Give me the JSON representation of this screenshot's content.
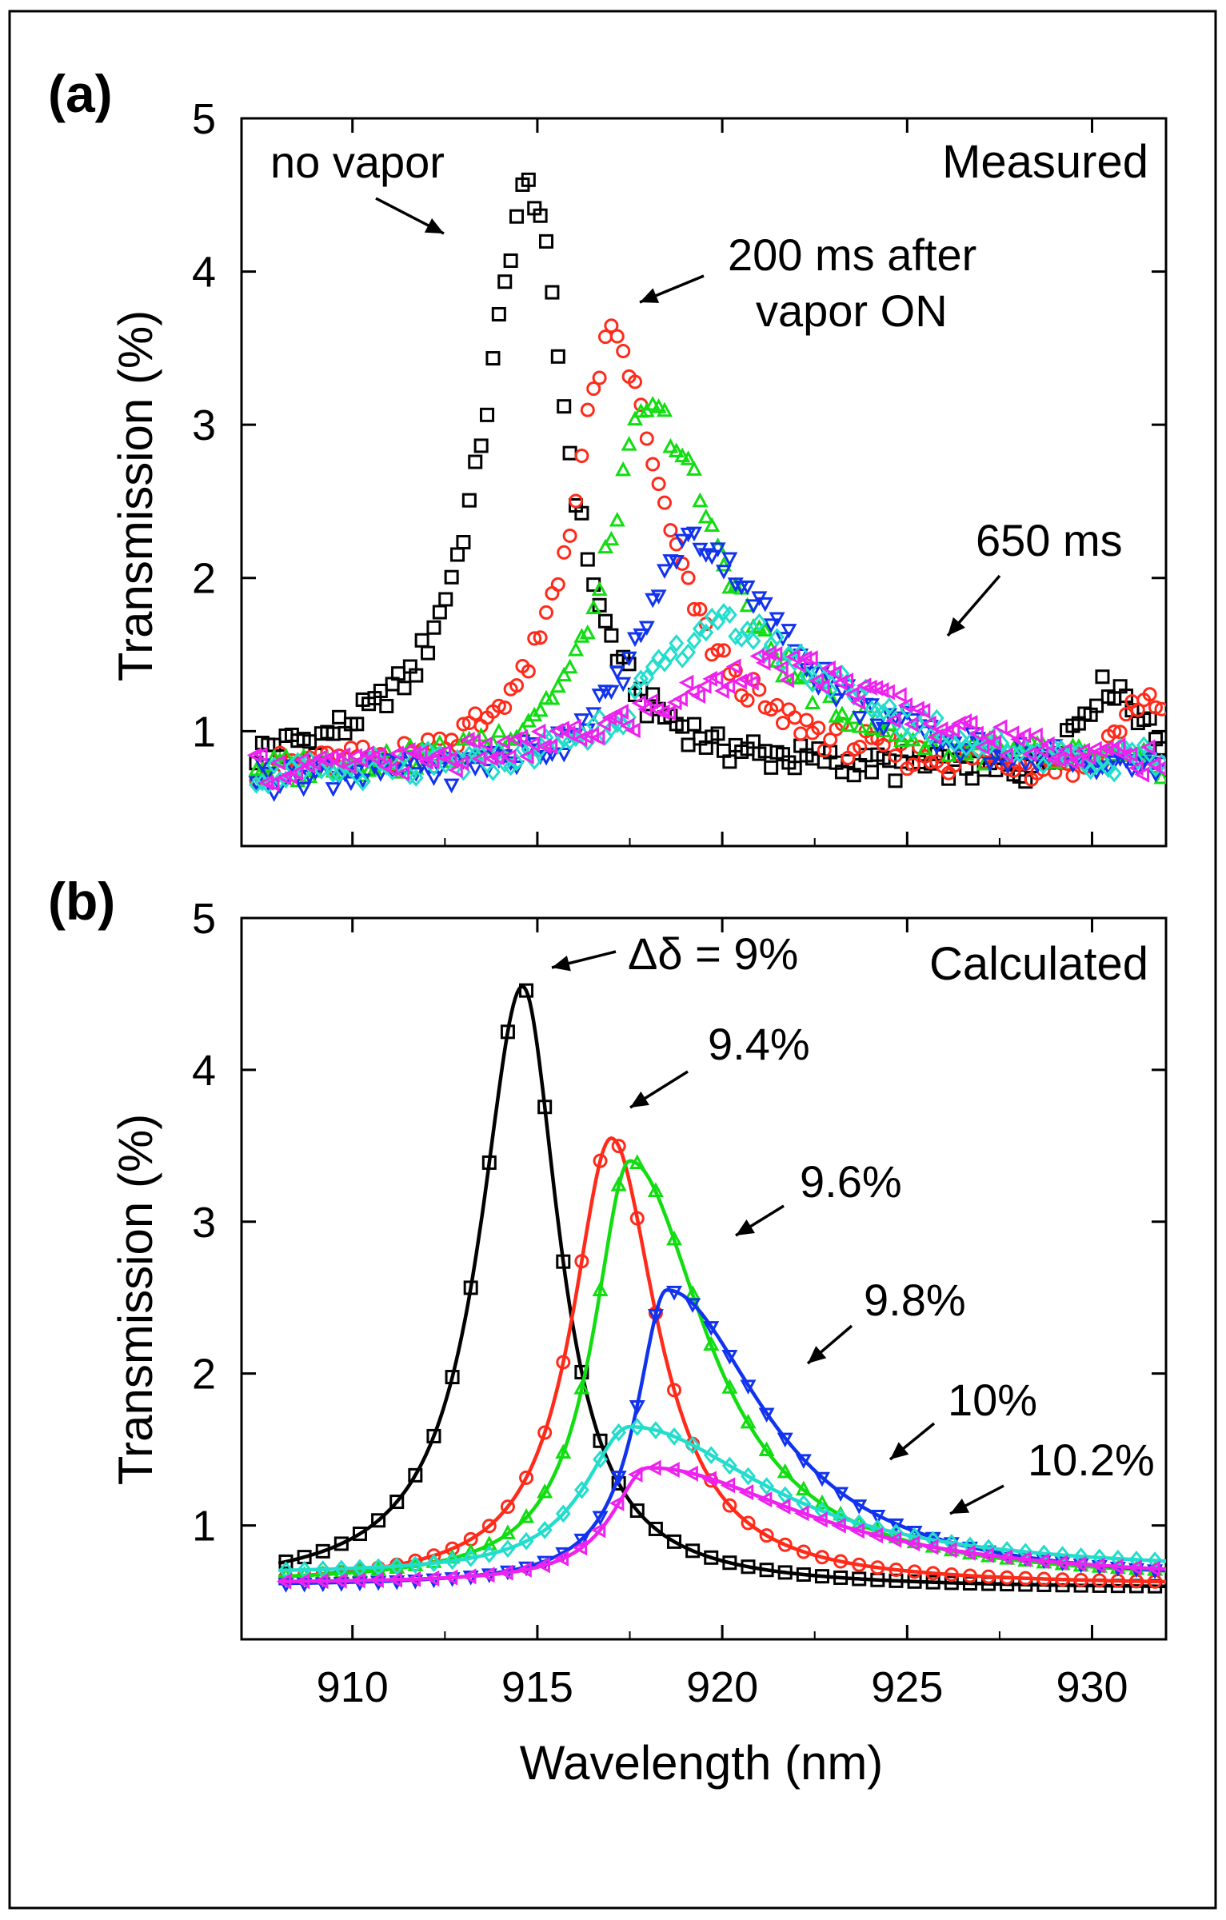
{
  "chart_data": [
    {
      "panel": "(a)",
      "type": "scatter",
      "title": "Measured",
      "xlabel": "Wavelength (nm)",
      "ylabel": "Transmission (%)",
      "xlim": [
        907,
        932
      ],
      "ylim": [
        0.25,
        5
      ],
      "x_ticks": [
        910,
        915,
        920,
        925,
        930
      ],
      "y_ticks": [
        1,
        2,
        3,
        4,
        5
      ],
      "show_x_tick_labels": false,
      "series": [
        {
          "name": "no vapor",
          "color": "#000000",
          "marker": "square",
          "center": 914.8,
          "gamma_left": 1.5,
          "gamma_right": 1.2,
          "baseline": 0.72,
          "peak": 4.55,
          "bump": {
            "x": 930.5,
            "height": 0.55,
            "width": 1.3
          }
        },
        {
          "name": "200 ms after vapor ON",
          "color": "#ff2a1a",
          "marker": "circle",
          "center": 917.0,
          "gamma_left": 1.3,
          "gamma_right": 1.8,
          "baseline": 0.72,
          "peak": 3.55,
          "bump": {
            "x": 931.5,
            "height": 0.45,
            "width": 1.0
          }
        },
        {
          "name": "",
          "color": "#11dd11",
          "marker": "triangle-up",
          "center": 918.0,
          "gamma_left": 1.35,
          "gamma_right": 2.4,
          "baseline": 0.72,
          "peak": 3.1,
          "bump": null
        },
        {
          "name": "",
          "color": "#1133ee",
          "marker": "triangle-down",
          "center": 919.1,
          "gamma_left": 1.6,
          "gamma_right": 3.2,
          "baseline": 0.68,
          "peak": 2.25,
          "bump": null
        },
        {
          "name": "",
          "color": "#22ddcc",
          "marker": "diamond",
          "center": 919.8,
          "gamma_left": 2.3,
          "gamma_right": 4.2,
          "baseline": 0.68,
          "peak": 1.68,
          "bump": null
        },
        {
          "name": "650 ms",
          "color": "#ee22ee",
          "marker": "triangle-left",
          "center": 921.5,
          "gamma_left": 4.2,
          "gamma_right": 4.4,
          "baseline": 0.7,
          "peak": 1.42,
          "bump": null
        }
      ],
      "annotations": [
        "no vapor",
        "200 ms after",
        "vapor ON",
        "650 ms"
      ]
    },
    {
      "panel": "(b)",
      "type": "line",
      "title": "Calculated",
      "xlabel": "Wavelength (nm)",
      "ylabel": "Transmission (%)",
      "xlim": [
        907,
        932
      ],
      "ylim": [
        0.25,
        5
      ],
      "x_ticks": [
        910,
        915,
        920,
        925,
        930
      ],
      "y_ticks": [
        1,
        2,
        3,
        4,
        5
      ],
      "show_x_tick_labels": true,
      "series": [
        {
          "name": "Δδ = 9%",
          "color": "#000000",
          "marker": "square",
          "center": 914.6,
          "gamma_left": 1.4,
          "gamma_right": 1.2,
          "baseline": 0.58,
          "peak": 4.55
        },
        {
          "name": "9.4%",
          "color": "#ff2a1a",
          "marker": "circle",
          "center": 917.0,
          "gamma_left": 1.3,
          "gamma_right": 1.5,
          "baseline": 0.6,
          "peak": 3.55
        },
        {
          "name": "9.6%",
          "color": "#11dd11",
          "marker": "triangle-up",
          "center": 917.5,
          "gamma_left": 1.2,
          "gamma_right": 2.5,
          "baseline": 0.62,
          "peak": 3.4
        },
        {
          "name": "9.8%",
          "color": "#1133ee",
          "marker": "triangle-down",
          "center": 918.5,
          "gamma_left": 1.0,
          "gamma_right": 3.2,
          "baseline": 0.6,
          "peak": 2.55
        },
        {
          "name": "10%",
          "color": "#22ddcc",
          "marker": "diamond",
          "center": 917.5,
          "gamma_left": 1.5,
          "gamma_right": 4.5,
          "baseline": 0.68,
          "peak": 1.65
        },
        {
          "name": "10.2%",
          "color": "#ee22ee",
          "marker": "triangle-left",
          "center": 918.0,
          "gamma_left": 1.2,
          "gamma_right": 5.2,
          "baseline": 0.62,
          "peak": 1.38
        }
      ],
      "annotations": [
        "Δδ = 9%",
        "9.4%",
        "9.6%",
        "9.8%",
        "10%",
        "10.2%"
      ]
    }
  ]
}
